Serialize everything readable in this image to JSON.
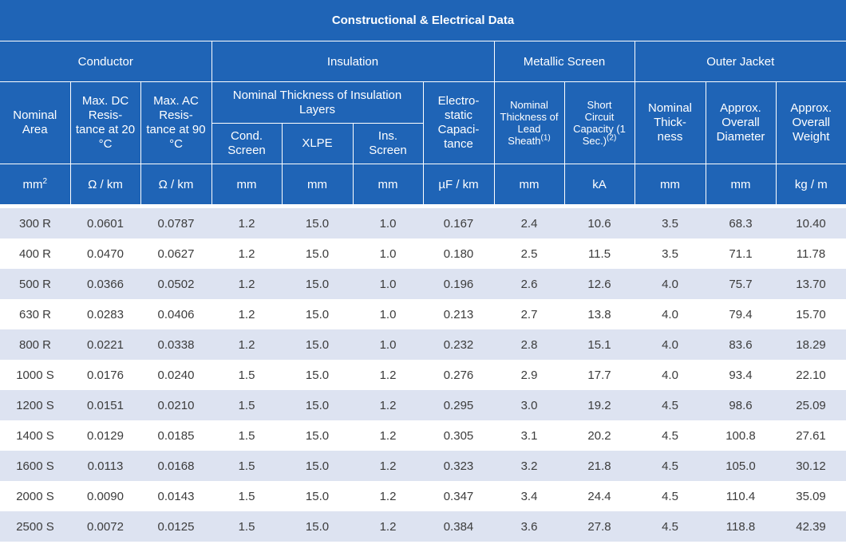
{
  "title": "Constructional & Electrical Data",
  "groups": {
    "conductor": "Conductor",
    "insulation": "Insulation",
    "metallic_screen": "Metallic Screen",
    "outer_jacket": "Outer Jacket"
  },
  "headers": {
    "nominal_area": "Nominal Area",
    "max_dc": "Max. DC Resis- tance at 20 °C",
    "max_ac": "Max. AC Resis- tance at 90 °C",
    "nominal_thickness_insulation": "Nominal Thickness of Insulation Layers",
    "electrostatic": "Electro- static Capaci- tance",
    "lead_sheath": "Nominal Thickness of Lead Sheath",
    "lead_sheath_note": "(1)",
    "short_circuit": "Short Circuit Capacity (1 Sec.)",
    "short_circuit_note": "(2)",
    "jacket_thickness": "Nominal Thick- ness",
    "overall_diameter": "Approx. Overall Diameter",
    "overall_weight": "Approx. Overall Weight",
    "cond_screen": "Cond. Screen",
    "xlpe": "XLPE",
    "ins_screen": "Ins. Screen"
  },
  "units": {
    "area": "mm",
    "area_sup": "2",
    "dc": "Ω / km",
    "ac": "Ω / km",
    "cond_screen": "mm",
    "xlpe": "mm",
    "ins_screen": "mm",
    "capacitance": "µF / km",
    "lead": "mm",
    "short_circuit": "kA",
    "jacket": "mm",
    "diameter": "mm",
    "weight": "kg / m"
  },
  "rows": [
    [
      "300 R",
      "0.0601",
      "0.0787",
      "1.2",
      "15.0",
      "1.0",
      "0.167",
      "2.4",
      "10.6",
      "3.5",
      "68.3",
      "10.40"
    ],
    [
      "400 R",
      "0.0470",
      "0.0627",
      "1.2",
      "15.0",
      "1.0",
      "0.180",
      "2.5",
      "11.5",
      "3.5",
      "71.1",
      "11.78"
    ],
    [
      "500 R",
      "0.0366",
      "0.0502",
      "1.2",
      "15.0",
      "1.0",
      "0.196",
      "2.6",
      "12.6",
      "4.0",
      "75.7",
      "13.70"
    ],
    [
      "630 R",
      "0.0283",
      "0.0406",
      "1.2",
      "15.0",
      "1.0",
      "0.213",
      "2.7",
      "13.8",
      "4.0",
      "79.4",
      "15.70"
    ],
    [
      "800 R",
      "0.0221",
      "0.0338",
      "1.2",
      "15.0",
      "1.0",
      "0.232",
      "2.8",
      "15.1",
      "4.0",
      "83.6",
      "18.29"
    ],
    [
      "1000 S",
      "0.0176",
      "0.0240",
      "1.5",
      "15.0",
      "1.2",
      "0.276",
      "2.9",
      "17.7",
      "4.0",
      "93.4",
      "22.10"
    ],
    [
      "1200 S",
      "0.0151",
      "0.0210",
      "1.5",
      "15.0",
      "1.2",
      "0.295",
      "3.0",
      "19.2",
      "4.5",
      "98.6",
      "25.09"
    ],
    [
      "1400 S",
      "0.0129",
      "0.0185",
      "1.5",
      "15.0",
      "1.2",
      "0.305",
      "3.1",
      "20.2",
      "4.5",
      "100.8",
      "27.61"
    ],
    [
      "1600 S",
      "0.0113",
      "0.0168",
      "1.5",
      "15.0",
      "1.2",
      "0.323",
      "3.2",
      "21.8",
      "4.5",
      "105.0",
      "30.12"
    ],
    [
      "2000 S",
      "0.0090",
      "0.0143",
      "1.5",
      "15.0",
      "1.2",
      "0.347",
      "3.4",
      "24.4",
      "4.5",
      "110.4",
      "35.09"
    ],
    [
      "2500 S",
      "0.0072",
      "0.0125",
      "1.5",
      "15.0",
      "1.2",
      "0.384",
      "3.6",
      "27.8",
      "4.5",
      "118.8",
      "42.39"
    ]
  ]
}
